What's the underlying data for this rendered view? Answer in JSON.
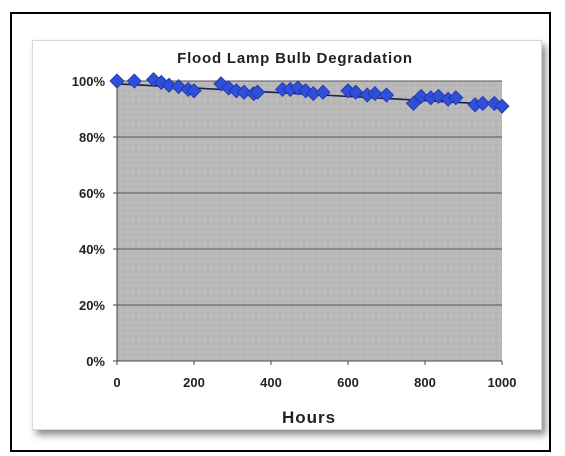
{
  "chart_data": {
    "type": "scatter",
    "title": "Flood Lamp Bulb Degradation",
    "xlabel": "Hours",
    "ylabel": "",
    "xlim": [
      0,
      1000
    ],
    "ylim": [
      0,
      100
    ],
    "x_ticks": [
      "0",
      "200",
      "400",
      "600",
      "800",
      "1000"
    ],
    "y_ticks": [
      "0%",
      "20%",
      "40%",
      "60%",
      "80%",
      "100%"
    ],
    "grid": true,
    "legend": "none",
    "trendline": {
      "type": "linear",
      "from": [
        0,
        99
      ],
      "to": [
        1000,
        91.5
      ]
    },
    "series": [
      {
        "marker": "diamond",
        "color": "#2f4fd8",
        "x": [
          0,
          45,
          95,
          115,
          135,
          160,
          185,
          200,
          270,
          290,
          310,
          330,
          355,
          365,
          430,
          450,
          470,
          490,
          510,
          535,
          600,
          620,
          650,
          670,
          700,
          770,
          790,
          815,
          835,
          860,
          880,
          930,
          950,
          980,
          1000
        ],
        "y": [
          100,
          100,
          100.5,
          99.5,
          98.5,
          98,
          97,
          96.5,
          99,
          97.5,
          96.5,
          96,
          95.5,
          96,
          97,
          97,
          97.5,
          96.5,
          95.5,
          96,
          96.5,
          96,
          95,
          95.5,
          95,
          92,
          94.5,
          94,
          94.5,
          93.5,
          94,
          91.5,
          92,
          92,
          91
        ]
      }
    ]
  }
}
